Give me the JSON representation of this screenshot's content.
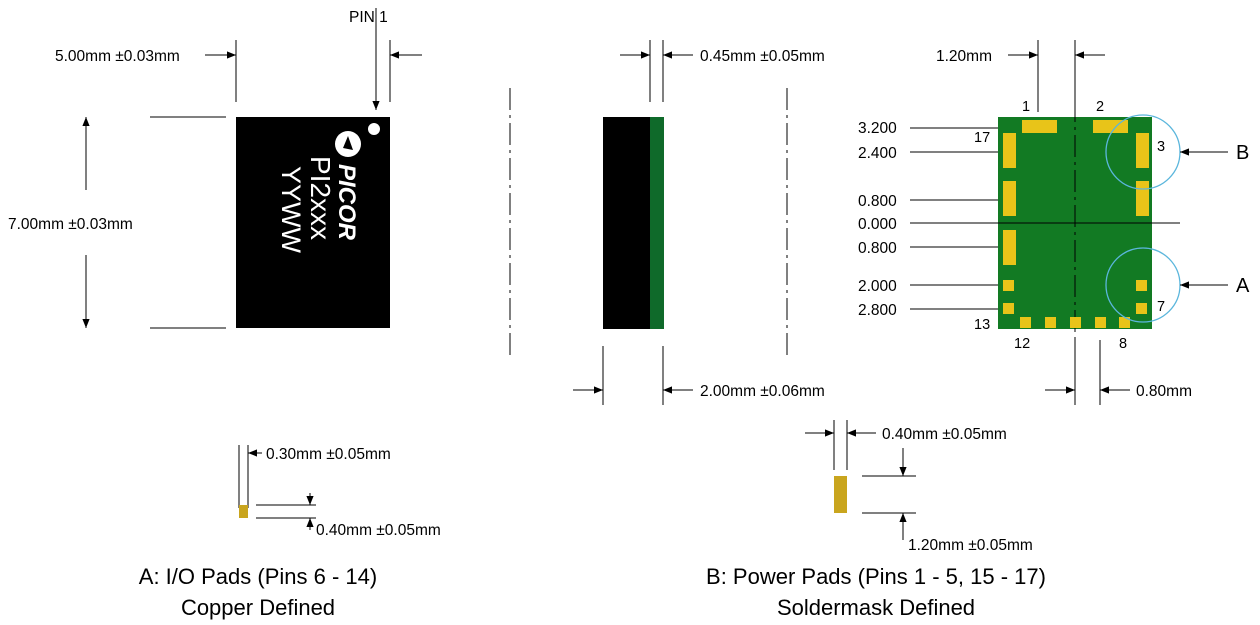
{
  "top_view": {
    "pin1_label": "PIN 1",
    "width_dim": "5.00mm ±0.03mm",
    "height_dim": "7.00mm ±0.03mm",
    "logo_text": "PICOR",
    "part_number": "PI2xxx",
    "date_code": "YYWW",
    "body_color": "#000000"
  },
  "side_view": {
    "lead_dim": "0.45mm ±0.05mm",
    "thickness_dim": "2.00mm ±0.06mm",
    "lead_color": "#0f6a2a"
  },
  "bottom_view": {
    "pitch_top": "1.20mm",
    "pitch_bottom": "0.80mm",
    "board_color": "#127a23",
    "pad_color": "#e8c419",
    "y_scale": [
      "3.200",
      "2.400",
      "0.800",
      "0.000",
      "0.800",
      "2.000",
      "2.800"
    ],
    "pin_labels": [
      "1",
      "2",
      "3",
      "7",
      "8",
      "12",
      "13",
      "17"
    ],
    "callout_a": "A",
    "callout_b": "B"
  },
  "detail_a": {
    "pad_width": "0.30mm ±0.05mm",
    "pad_height": "0.40mm ±0.05mm",
    "caption_line1": "A: I/O Pads (Pins 6 - 14)",
    "caption_line2": "Copper Defined"
  },
  "detail_b": {
    "pad_width": "0.40mm ±0.05mm",
    "pad_height": "1.20mm ±0.05mm",
    "caption_line1": "B: Power Pads (Pins 1 - 5, 15 - 17)",
    "caption_line2": "Soldermask Defined"
  }
}
